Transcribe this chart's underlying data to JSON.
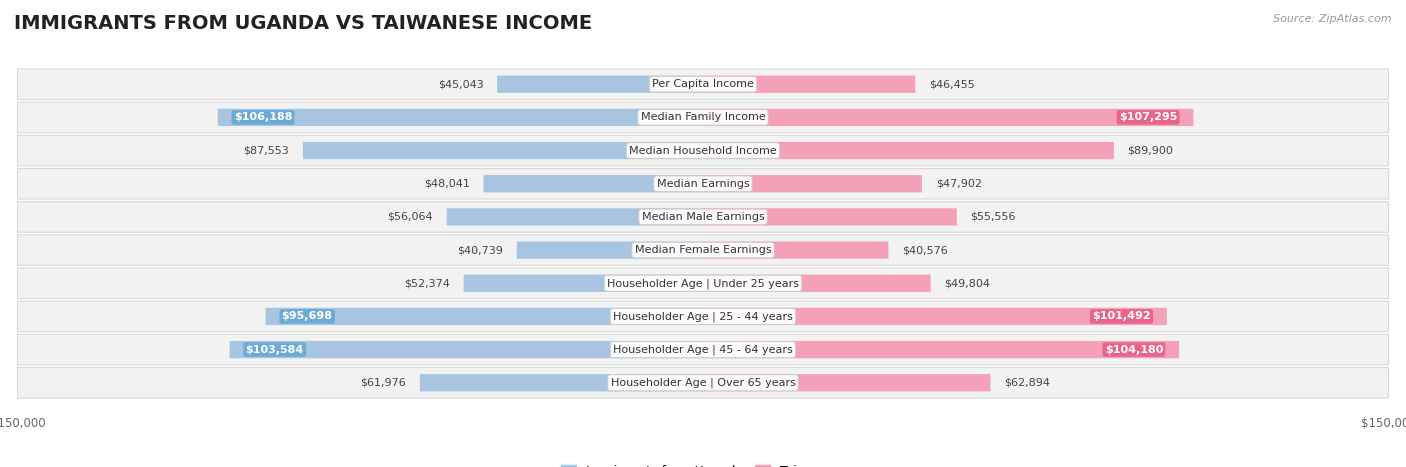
{
  "title": "IMMIGRANTS FROM UGANDA VS TAIWANESE INCOME",
  "source": "Source: ZipAtlas.com",
  "categories": [
    "Per Capita Income",
    "Median Family Income",
    "Median Household Income",
    "Median Earnings",
    "Median Male Earnings",
    "Median Female Earnings",
    "Householder Age | Under 25 years",
    "Householder Age | 25 - 44 years",
    "Householder Age | 45 - 64 years",
    "Householder Age | Over 65 years"
  ],
  "uganda_values": [
    45043,
    106188,
    87553,
    48041,
    56064,
    40739,
    52374,
    95698,
    103584,
    61976
  ],
  "taiwanese_values": [
    46455,
    107295,
    89900,
    47902,
    55556,
    40576,
    49804,
    101492,
    104180,
    62894
  ],
  "uganda_color": "#a8c4e0",
  "uganda_dark_color": "#6aaad4",
  "taiwanese_color": "#f4a0b8",
  "taiwanese_dark_color": "#e8648a",
  "xlim": 150000,
  "title_fontsize": 14,
  "val_fontsize": 8,
  "cat_fontsize": 8,
  "background_color": "#ffffff",
  "row_bg_color": "#f2f2f2",
  "row_border_color": "#d8d8d8",
  "legend_uganda": "Immigrants from Uganda",
  "legend_taiwanese": "Taiwanese",
  "inside_label_threshold": 0.62,
  "source_fontsize": 8
}
